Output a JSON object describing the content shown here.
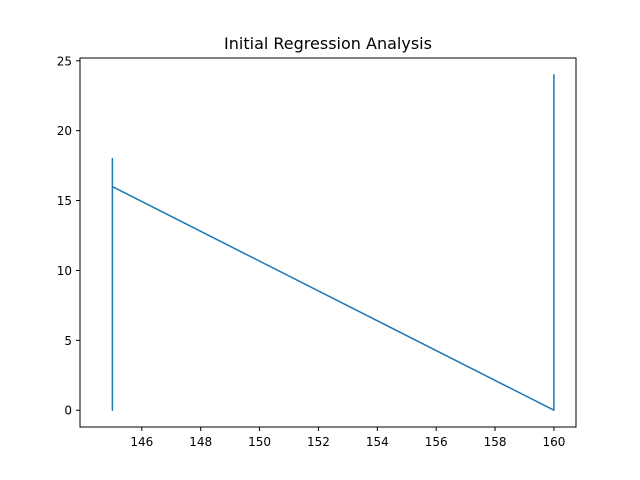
{
  "chart_data": {
    "type": "line",
    "title": "Initial Regression Analysis",
    "xlabel": "",
    "ylabel": "",
    "xlim": [
      143.9,
      160.75
    ],
    "ylim": [
      -1.2,
      25.2
    ],
    "xticks": [
      146,
      148,
      150,
      152,
      154,
      156,
      158,
      160
    ],
    "yticks": [
      0,
      5,
      10,
      15,
      20,
      25
    ],
    "grid": false,
    "legend": "none",
    "series": [
      {
        "color": "#1f77b4",
        "x": [
          145,
          145,
          145,
          145,
          145,
          145,
          145,
          145,
          145,
          145,
          145,
          145,
          145,
          160,
          160,
          160,
          160,
          160,
          160,
          160,
          160,
          160,
          160,
          160
        ],
        "y": [
          18,
          0,
          17,
          2,
          16,
          1,
          18,
          3,
          15,
          0,
          17,
          5,
          16,
          0,
          24,
          10,
          23,
          11,
          24,
          12,
          22,
          10,
          24,
          11
        ]
      }
    ]
  }
}
